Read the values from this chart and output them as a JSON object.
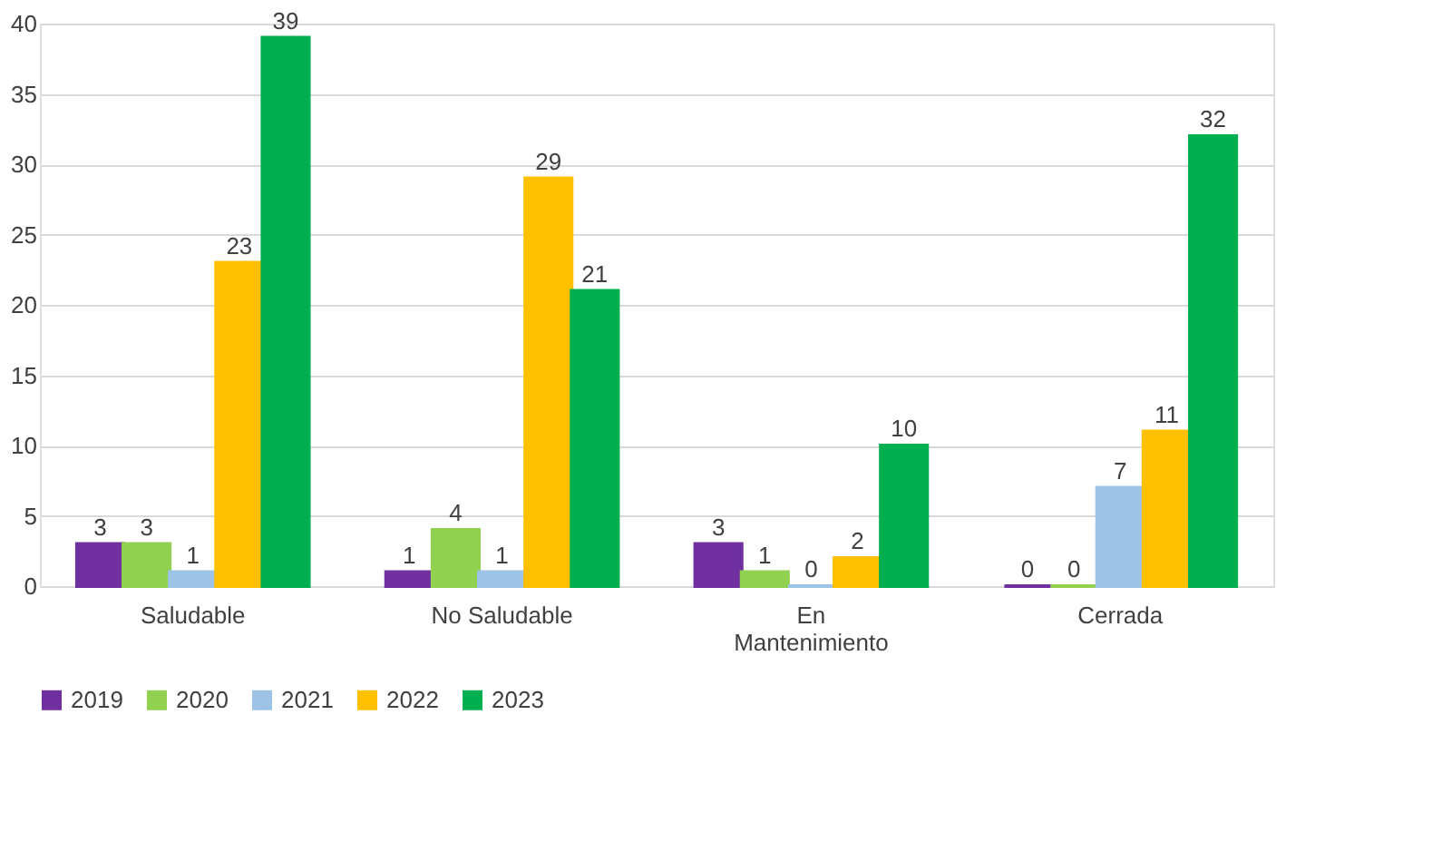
{
  "chart_data": {
    "type": "bar",
    "categories": [
      "Saludable",
      "No Saludable",
      "En Mantenimiento",
      "Cerrada"
    ],
    "series": [
      {
        "name": "2019",
        "color": "#7030a0",
        "values": [
          3,
          1,
          3,
          0
        ]
      },
      {
        "name": "2020",
        "color": "#92d050",
        "values": [
          3,
          4,
          1,
          0
        ]
      },
      {
        "name": "2021",
        "color": "#9dc3e6",
        "values": [
          1,
          1,
          0,
          7
        ]
      },
      {
        "name": "2022",
        "color": "#ffc000",
        "values": [
          23,
          29,
          2,
          11
        ]
      },
      {
        "name": "2023",
        "color": "#00b050",
        "values": [
          39,
          21,
          10,
          32
        ]
      }
    ],
    "ylim": [
      0,
      40
    ],
    "yticks": [
      0,
      5,
      10,
      15,
      20,
      25,
      30,
      35,
      40
    ],
    "grid": "y",
    "legend": "bottom",
    "data_labels": true
  }
}
